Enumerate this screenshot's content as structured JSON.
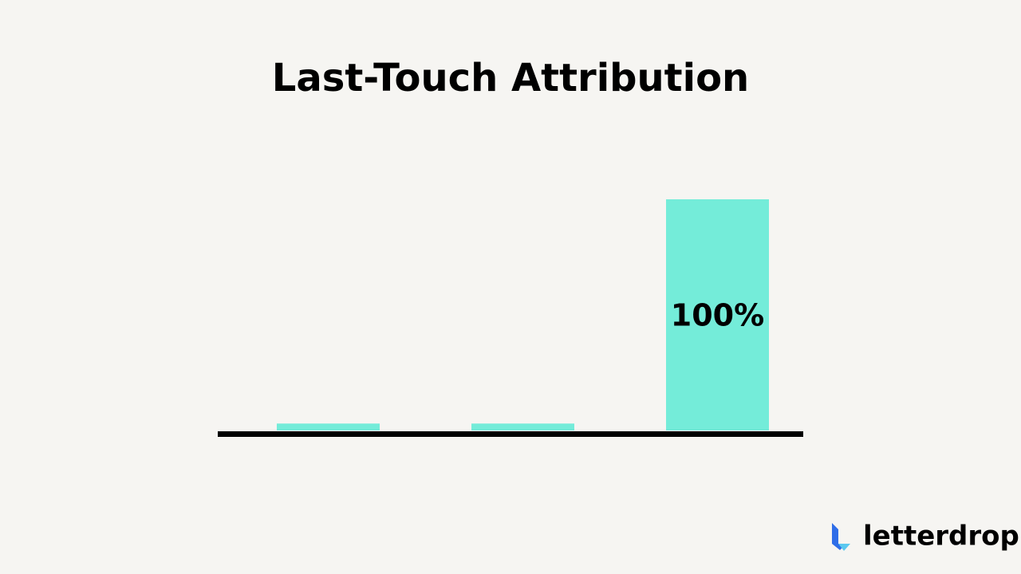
{
  "chart_data": {
    "type": "bar",
    "title": "Last-Touch Attribution",
    "categories": [
      null,
      null,
      null
    ],
    "values": [
      3,
      3,
      100
    ],
    "value_labels": [
      null,
      null,
      "100%"
    ],
    "color": "#74ecd9",
    "ylim": [
      0,
      100
    ]
  },
  "logo": "letterdrop"
}
